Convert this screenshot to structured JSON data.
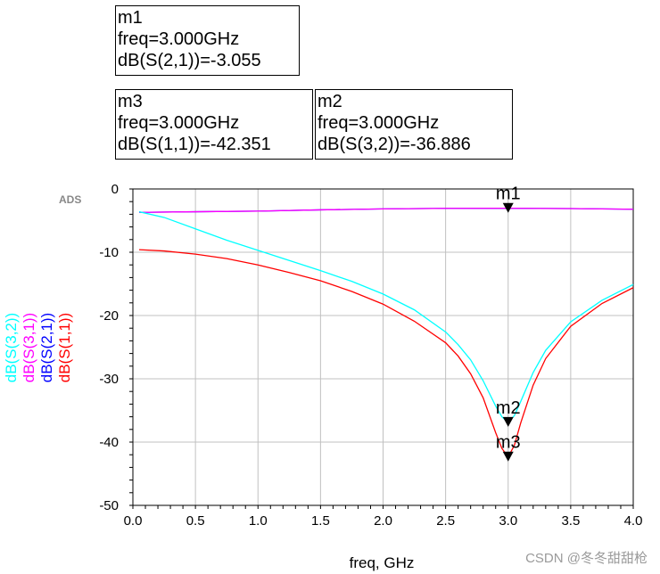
{
  "markers": [
    {
      "id": "m1",
      "name": "m1",
      "freq": "freq=3.000GHz",
      "value": "dB(S(2,1))=-3.055",
      "x": 3.0,
      "y": -3.055
    },
    {
      "id": "m3",
      "name": "m3",
      "freq": "freq=3.000GHz",
      "value": "dB(S(1,1))=-42.351",
      "x": 3.0,
      "y": -42.351
    },
    {
      "id": "m2",
      "name": "m2",
      "freq": "freq=3.000GHz",
      "value": "dB(S(3,2))=-36.886",
      "x": 3.0,
      "y": -36.886
    }
  ],
  "ads_tag": "ADS",
  "watermark": "CSDN @冬冬甜甜枪",
  "chart_data": {
    "type": "line",
    "title": "",
    "xlabel": "freq, GHz",
    "xlim": [
      0.0,
      4.0
    ],
    "ylim": [
      -50,
      0
    ],
    "xticks": [
      "0.0",
      "0.5",
      "1.0",
      "1.5",
      "2.0",
      "2.5",
      "3.0",
      "3.5",
      "4.0"
    ],
    "yticks": [
      "0",
      "-10",
      "-20",
      "-30",
      "-40",
      "-50"
    ],
    "grid": true,
    "legend_position": "left-vertical",
    "series": [
      {
        "name": "dB(S(3,2))",
        "color": "#00ffff",
        "x": [
          0.05,
          0.25,
          0.5,
          0.75,
          1.0,
          1.25,
          1.5,
          1.75,
          2.0,
          2.25,
          2.5,
          2.6,
          2.7,
          2.8,
          2.9,
          2.95,
          3.0,
          3.05,
          3.1,
          3.2,
          3.3,
          3.5,
          3.75,
          4.0
        ],
        "y": [
          -3.6,
          -4.5,
          -6.3,
          -8.1,
          -9.7,
          -11.3,
          -12.9,
          -14.6,
          -16.6,
          -19.1,
          -22.6,
          -24.6,
          -27.0,
          -30.3,
          -34.3,
          -36.0,
          -36.9,
          -35.8,
          -33.6,
          -29.0,
          -25.5,
          -21.0,
          -17.6,
          -15.1
        ]
      },
      {
        "name": "dB(S(3,1))",
        "color": "#ff00ff",
        "x": [
          0.05,
          0.5,
          1.0,
          1.5,
          2.0,
          2.5,
          3.0,
          3.5,
          4.0
        ],
        "y": [
          -3.7,
          -3.6,
          -3.5,
          -3.3,
          -3.15,
          -3.06,
          -3.05,
          -3.1,
          -3.2
        ]
      },
      {
        "name": "dB(S(2,1))",
        "color": "#0000ff",
        "x": [
          0.05,
          0.5,
          1.0,
          1.5,
          2.0,
          2.5,
          3.0,
          3.5,
          4.0
        ],
        "y": [
          -3.7,
          -3.6,
          -3.5,
          -3.3,
          -3.15,
          -3.06,
          -3.055,
          -3.1,
          -3.2
        ]
      },
      {
        "name": "dB(S(1,1))",
        "color": "#ff0000",
        "x": [
          0.05,
          0.25,
          0.5,
          0.75,
          1.0,
          1.25,
          1.5,
          1.75,
          2.0,
          2.25,
          2.5,
          2.6,
          2.7,
          2.8,
          2.9,
          2.95,
          3.0,
          3.05,
          3.1,
          3.2,
          3.3,
          3.5,
          3.75,
          4.0
        ],
        "y": [
          -9.6,
          -9.8,
          -10.3,
          -11.0,
          -12.0,
          -13.2,
          -14.5,
          -16.2,
          -18.2,
          -20.9,
          -24.3,
          -26.4,
          -29.2,
          -33.0,
          -38.5,
          -41.0,
          -42.35,
          -40.5,
          -37.0,
          -31.0,
          -26.8,
          -21.7,
          -18.1,
          -15.6
        ]
      }
    ]
  }
}
